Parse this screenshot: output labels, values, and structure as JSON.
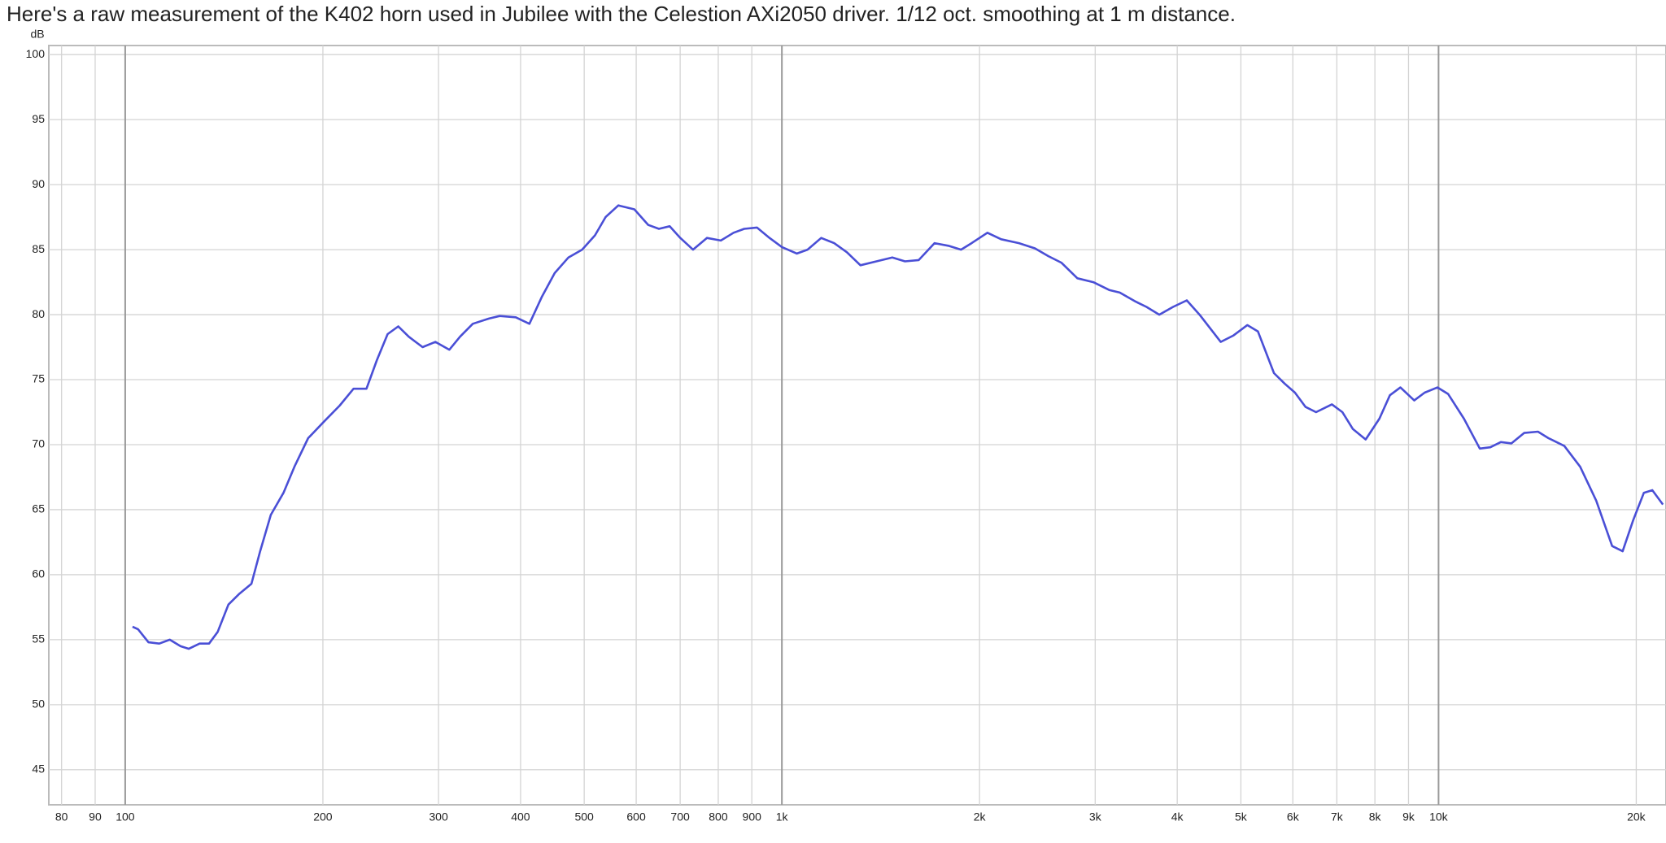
{
  "chart_data": {
    "type": "line",
    "title": "Here's a raw measurement of the K402 horn used in Jubilee with the Celestion AXi2050 driver. 1/12 oct. smoothing at 1 m distance.",
    "y_label": "dB",
    "x_scale": "log",
    "grid": true,
    "color": "#4a4fd6",
    "xlim": [
      76.5,
      22200
    ],
    "ylim": [
      42.3,
      100.7
    ],
    "xticks": [
      80,
      90,
      100,
      200,
      300,
      400,
      500,
      600,
      700,
      800,
      900,
      {
        "value": 1000,
        "label": "1k"
      },
      {
        "value": 2000,
        "label": "2k"
      },
      {
        "value": 3000,
        "label": "3k"
      },
      {
        "value": 4000,
        "label": "4k"
      },
      {
        "value": 5000,
        "label": "5k"
      },
      {
        "value": 6000,
        "label": "6k"
      },
      {
        "value": 7000,
        "label": "7k"
      },
      {
        "value": 8000,
        "label": "8k"
      },
      {
        "value": 9000,
        "label": "9k"
      },
      {
        "value": 10000,
        "label": "10k"
      },
      {
        "value": 20000,
        "label": "20k"
      }
    ],
    "yticks": [
      45,
      50,
      55,
      60,
      65,
      70,
      75,
      80,
      85,
      90,
      95,
      100
    ],
    "x": [
      102.6,
      104.6,
      108.5,
      112.7,
      116.9,
      121.4,
      125,
      129.8,
      134.2,
      138.3,
      143.6,
      149,
      155.7,
      160.5,
      166.6,
      174.2,
      181,
      189.9,
      201,
      212.1,
      222.7,
      233,
      241.7,
      251,
      260.5,
      270.3,
      283.7,
      296.8,
      311.6,
      323.5,
      338.3,
      358,
      371.8,
      393.3,
      412.6,
      431.3,
      450.9,
      473.1,
      496.4,
      519.3,
      538.9,
      563.6,
      596.1,
      625.9,
      649.8,
      674.6,
      700.3,
      732.2,
      768.9,
      807.2,
      844.2,
      876.4,
      916.2,
      957.8,
      1000,
      1054,
      1094,
      1148,
      1201,
      1256,
      1317,
      1393,
      1473,
      1540,
      1616,
      1708,
      1792,
      1874,
      1945,
      2056,
      2157,
      2296,
      2428,
      2546,
      2664,
      2818,
      2980,
      3151,
      3270,
      3459,
      3590,
      3756,
      3942,
      4136,
      4326,
      4658,
      4873,
      5114,
      5309,
      5616,
      5827,
      6045,
      6272,
      6508,
      6880,
      7138,
      7406,
      7745,
      8126,
      8431,
      8748,
      9181,
      9524,
      9963,
      10338,
      10930,
      11555,
      11990,
      12440,
      12910,
      13500,
      14170,
      14700,
      15540,
      16430,
      17380,
      18380,
      19070,
      19790,
      20540,
      21160,
      21960
    ],
    "values": [
      56.0,
      55.8,
      54.8,
      54.7,
      55.0,
      54.5,
      54.3,
      54.7,
      54.7,
      55.6,
      57.7,
      58.5,
      59.3,
      61.8,
      64.6,
      66.3,
      68.3,
      70.5,
      71.8,
      73.0,
      74.3,
      74.3,
      76.5,
      78.5,
      79.1,
      78.3,
      77.5,
      77.9,
      77.3,
      78.3,
      79.3,
      79.7,
      79.9,
      79.8,
      79.3,
      81.4,
      83.2,
      84.4,
      85.0,
      86.1,
      87.5,
      88.4,
      88.1,
      86.9,
      86.6,
      86.8,
      85.9,
      85.0,
      85.9,
      85.7,
      86.3,
      86.6,
      86.7,
      85.9,
      85.2,
      84.7,
      85.0,
      85.9,
      85.5,
      84.8,
      83.8,
      84.1,
      84.4,
      84.1,
      84.2,
      85.5,
      85.3,
      85.0,
      85.5,
      86.3,
      85.8,
      85.5,
      85.1,
      84.5,
      84.0,
      82.8,
      82.5,
      81.9,
      81.7,
      81.0,
      80.6,
      80.0,
      80.6,
      81.1,
      80.0,
      77.9,
      78.4,
      79.2,
      78.7,
      75.5,
      74.7,
      74.0,
      72.9,
      72.5,
      73.1,
      72.5,
      71.2,
      70.4,
      72.0,
      73.8,
      74.4,
      73.4,
      74.0,
      74.4,
      73.9,
      72.0,
      69.7,
      69.8,
      70.2,
      70.1,
      70.9,
      71.0,
      70.5,
      69.9,
      68.3,
      65.7,
      62.2,
      61.8,
      64.2,
      66.3,
      66.5,
      65.4
    ]
  }
}
